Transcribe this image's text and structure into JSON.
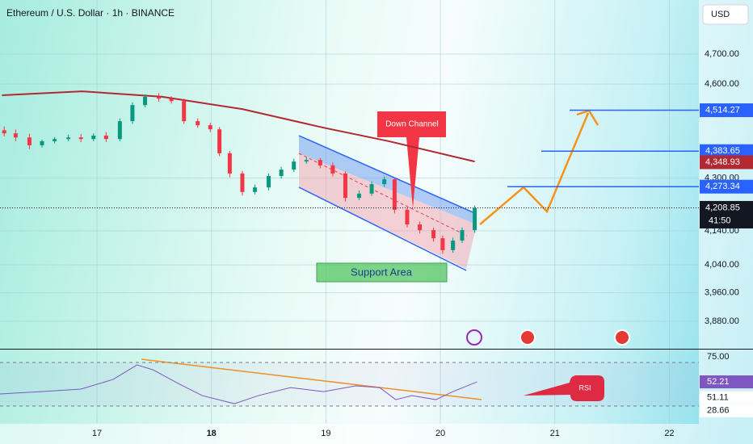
{
  "header": {
    "symbol": "Ethereum / U.S. Dollar · 1h · BINANCE",
    "currency": "USD"
  },
  "chart_data": [
    {
      "type": "candlestick",
      "x": [
        16.19,
        16.29,
        16.41,
        16.52,
        16.63,
        16.75,
        16.86,
        16.97,
        17.08,
        17.2,
        17.31,
        17.42,
        17.54,
        17.65,
        17.76,
        17.88,
        17.99,
        18.07,
        18.16,
        18.27,
        18.38,
        18.5,
        18.61,
        18.72,
        18.83,
        18.95,
        19.06,
        19.17,
        19.29,
        19.4,
        19.51,
        19.6,
        19.71,
        19.82,
        19.94,
        20.02,
        20.11,
        20.19,
        20.3
      ],
      "open": [
        4450,
        4440,
        4427,
        4402,
        4415,
        4422,
        4427,
        4422,
        4433,
        4422,
        4479,
        4531,
        4558,
        4552,
        4544,
        4479,
        4466,
        4453,
        4377,
        4314,
        4257,
        4271,
        4306,
        4326,
        4351,
        4356,
        4339,
        4314,
        4239,
        4252,
        4281,
        4296,
        4203,
        4159,
        4142,
        4118,
        4083,
        4111,
        4142
      ],
      "high": [
        4462,
        4452,
        4439,
        4420,
        4428,
        4436,
        4438,
        4440,
        4444,
        4488,
        4540,
        4566,
        4570,
        4560,
        4552,
        4488,
        4474,
        4460,
        4385,
        4322,
        4280,
        4314,
        4335,
        4360,
        4364,
        4362,
        4348,
        4320,
        4262,
        4290,
        4305,
        4302,
        4210,
        4168,
        4150,
        4126,
        4120,
        4150,
        4216
      ],
      "low": [
        4430,
        4415,
        4390,
        4395,
        4408,
        4415,
        4412,
        4415,
        4412,
        4415,
        4470,
        4524,
        4542,
        4536,
        4470,
        4458,
        4444,
        4368,
        4302,
        4246,
        4250,
        4262,
        4298,
        4318,
        4344,
        4330,
        4305,
        4228,
        4232,
        4245,
        4272,
        4192,
        4150,
        4132,
        4108,
        4072,
        4075,
        4104,
        4134
      ],
      "close": [
        4440,
        4427,
        4402,
        4415,
        4422,
        4427,
        4422,
        4433,
        4422,
        4479,
        4531,
        4558,
        4552,
        4544,
        4479,
        4466,
        4453,
        4377,
        4314,
        4257,
        4271,
        4306,
        4326,
        4351,
        4356,
        4339,
        4314,
        4239,
        4252,
        4281,
        4296,
        4203,
        4159,
        4142,
        4118,
        4083,
        4111,
        4142,
        4208
      ],
      "up_color": "#089981",
      "down_color": "#f23645",
      "ma": {
        "x": [
          16.17,
          16.87,
          17.57,
          18.27,
          18.98,
          19.55,
          20.3
        ],
        "values": [
          4563,
          4576,
          4558,
          4518,
          4458,
          4415,
          4351
        ],
        "color": "#b22833"
      },
      "log_scale": true,
      "xlim": [
        16.153,
        22.258
      ],
      "xticks": [
        17,
        18,
        19,
        20,
        21,
        22
      ],
      "ylim": [
        3804,
        4886
      ],
      "yticks": [
        {
          "value": 3880,
          "label": "3,880.00"
        },
        {
          "value": 3960,
          "label": "3,960.00"
        },
        {
          "value": 4040,
          "label": "4,040.00"
        },
        {
          "value": 4140,
          "label": "4,140.00"
        },
        {
          "value": 4300,
          "label": "4,300.00"
        },
        {
          "value": 4600,
          "label": "4,600.00"
        },
        {
          "value": 4700,
          "label": "4,700.00"
        }
      ],
      "price_labels": [
        {
          "value": 4514.27,
          "label": "4,514.27",
          "color": "#2962ff"
        },
        {
          "value": 4383.65,
          "label": "4,383.65",
          "color": "#2962ff"
        },
        {
          "value": 4348.93,
          "label": "4,348.93",
          "color": "#b22833"
        },
        {
          "value": 4273.34,
          "label": "4,273.34",
          "color": "#2962ff"
        },
        {
          "value": 4208.85,
          "label": "4,208.85",
          "color": "#131722"
        }
      ],
      "countdown": "41:50",
      "annotations": {
        "down_channel": "Down Channel",
        "support_area": "Support Area"
      }
    },
    {
      "type": "line",
      "x": [
        16.15,
        16.51,
        16.86,
        17.14,
        17.35,
        17.49,
        17.71,
        17.92,
        18.2,
        18.41,
        18.69,
        18.98,
        19.26,
        19.47,
        19.61,
        19.75,
        19.96,
        20.11,
        20.32
      ],
      "values": [
        41.1,
        43.3,
        45.6,
        54.4,
        67.8,
        63.3,
        50.7,
        39.6,
        32.2,
        39.6,
        47.0,
        43.3,
        48.5,
        47.0,
        35.9,
        39.6,
        35.9,
        43.3,
        52.2
      ],
      "color": "#7e57c2",
      "xlim": [
        16.153,
        22.258
      ],
      "ylim": [
        13.7,
        81.9
      ],
      "yticks": [
        {
          "value": 75,
          "label": "75.00"
        }
      ],
      "levels": [
        70,
        30
      ],
      "value_labels": [
        {
          "value": 52.21,
          "label": "52.21",
          "color": "#7e57c2"
        },
        {
          "value": 51.11,
          "label": "51.11",
          "color": "#ffffff"
        },
        {
          "value": 28.66,
          "label": "28.66",
          "color": "#ffffff"
        }
      ],
      "annotation": "RSI"
    }
  ]
}
